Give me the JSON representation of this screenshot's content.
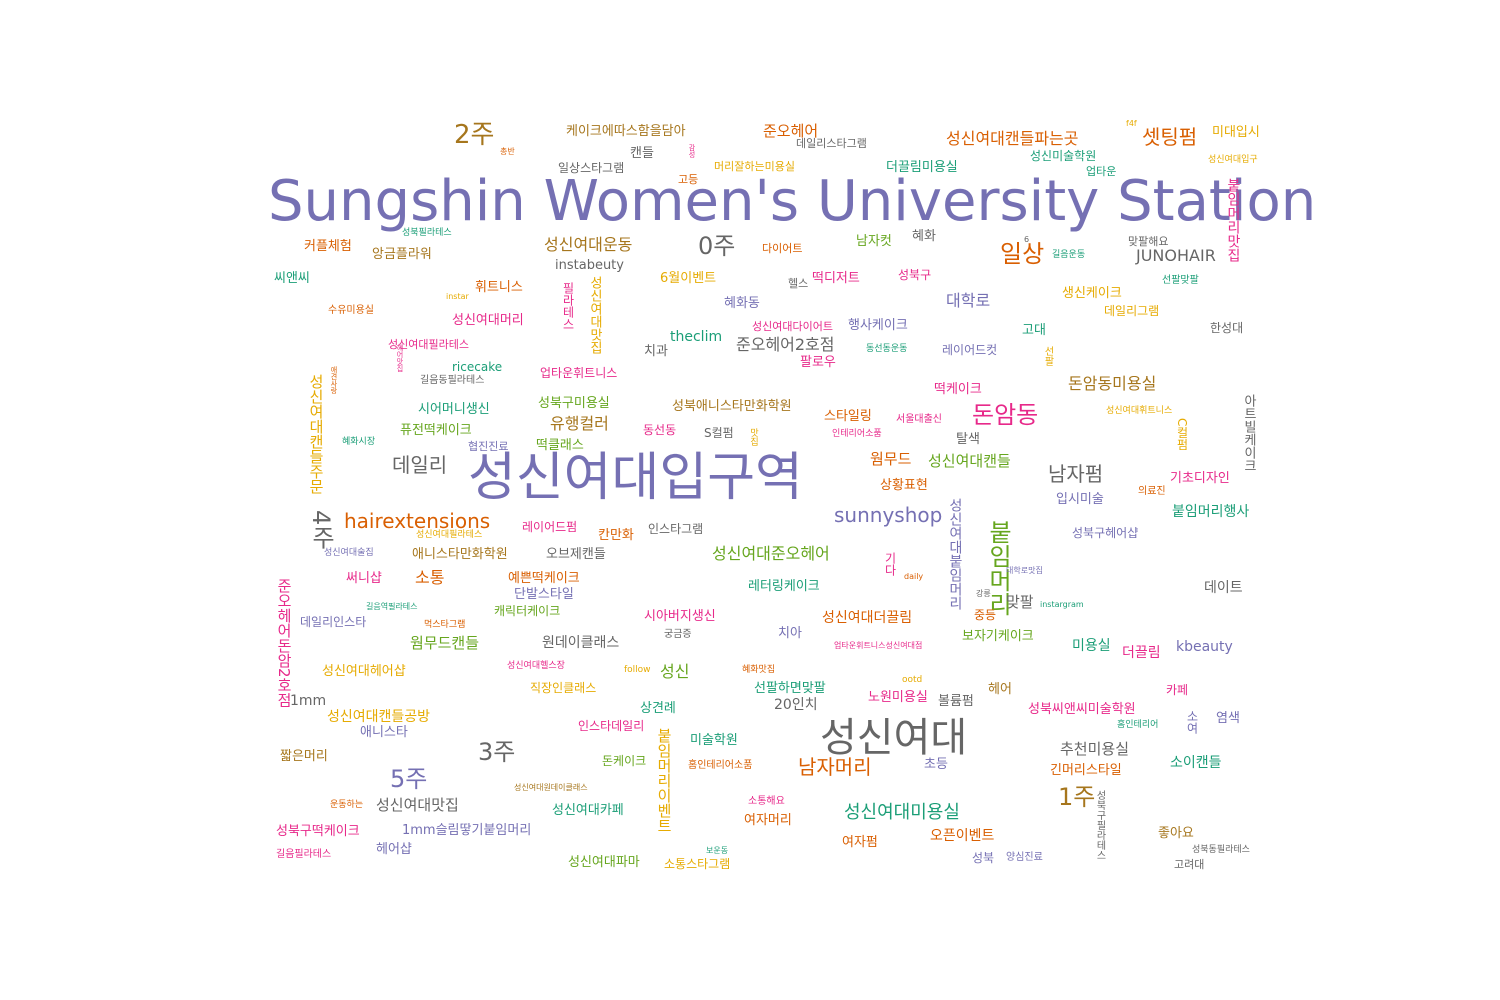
{
  "palette": {
    "purple": "#7570b3",
    "orange": "#d95f02",
    "green": "#1b9e77",
    "pink": "#e7298a",
    "lime": "#66a61e",
    "gold": "#e6ab02",
    "brown": "#a6761d",
    "gray": "#666666"
  },
  "words": [
    {
      "text": "Sungshin Women's University Station",
      "color": "purple"
    },
    {
      "text": "성신여대입구역",
      "color": "purple"
    },
    {
      "text": "성신여대",
      "color": "gray"
    },
    {
      "text": "2주",
      "color": "brown"
    },
    {
      "text": "0주",
      "color": "gray"
    },
    {
      "text": "3주",
      "color": "gray"
    },
    {
      "text": "5주",
      "color": "purple"
    },
    {
      "text": "1주",
      "color": "brown"
    },
    {
      "text": "4주",
      "color": "gray"
    },
    {
      "text": "일상",
      "color": "orange"
    },
    {
      "text": "돈암동",
      "color": "pink"
    },
    {
      "text": "데일리",
      "color": "gray"
    },
    {
      "text": "남자펌",
      "color": "gray"
    },
    {
      "text": "hairextensions",
      "color": "orange"
    },
    {
      "text": "sunnyshop",
      "color": "purple"
    },
    {
      "text": "붙임머리",
      "color": "lime"
    },
    {
      "text": "남자머리",
      "color": "orange"
    },
    {
      "text": "셋팅펌",
      "color": "orange"
    },
    {
      "text": "JUNOHAIR",
      "color": "gray"
    },
    {
      "text": "성신여대운동",
      "color": "brown"
    },
    {
      "text": "성신여대미용실",
      "color": "green"
    },
    {
      "text": "성신여대캔들파는곳",
      "color": "orange"
    },
    {
      "text": "케이크에따스함을담아",
      "color": "brown"
    },
    {
      "text": "준오헤어",
      "color": "orange"
    },
    {
      "text": "준오헤어2호점",
      "color": "gray"
    },
    {
      "text": "대학로",
      "color": "purple"
    },
    {
      "text": "돈암동미용실",
      "color": "brown"
    },
    {
      "text": "유행컬러",
      "color": "brown"
    },
    {
      "text": "웜무드",
      "color": "orange"
    },
    {
      "text": "성신여대캔들",
      "color": "lime"
    },
    {
      "text": "성신여대준오헤어",
      "color": "lime"
    },
    {
      "text": "소통",
      "color": "orange"
    },
    {
      "text": "붙임머리행사",
      "color": "green"
    },
    {
      "text": "웜무드캔들",
      "color": "lime"
    },
    {
      "text": "성신여대캔들공방",
      "color": "gold"
    },
    {
      "text": "성신여대맛집",
      "color": "gray"
    },
    {
      "text": "추천미용실",
      "color": "gray"
    },
    {
      "text": "kbeauty",
      "color": "purple"
    },
    {
      "text": "instabeuty",
      "color": "gray"
    },
    {
      "text": "더끌림미용실",
      "color": "green"
    },
    {
      "text": "성신미술학원",
      "color": "green"
    },
    {
      "text": "미대입시",
      "color": "gold"
    },
    {
      "text": "데일리스타그램",
      "color": "gray"
    },
    {
      "text": "일상스타그램",
      "color": "gray"
    },
    {
      "text": "머리잘하는미용실",
      "color": "gold"
    },
    {
      "text": "캔들",
      "color": "gray"
    },
    {
      "text": "고등",
      "color": "orange"
    },
    {
      "text": "업타운",
      "color": "green"
    },
    {
      "text": "커플체험",
      "color": "orange"
    },
    {
      "text": "앙금플라워",
      "color": "brown"
    },
    {
      "text": "성북필라테스",
      "color": "green"
    },
    {
      "text": "다이어트",
      "color": "orange"
    },
    {
      "text": "남자컷",
      "color": "lime"
    },
    {
      "text": "혜화",
      "color": "gray"
    },
    {
      "text": "맞팔해요",
      "color": "gray"
    },
    {
      "text": "길음운동",
      "color": "green"
    },
    {
      "text": "씨앤씨",
      "color": "green"
    },
    {
      "text": "휘트니스",
      "color": "orange"
    },
    {
      "text": "6월이벤트",
      "color": "gold"
    },
    {
      "text": "헬스",
      "color": "gray"
    },
    {
      "text": "떡디저트",
      "color": "pink"
    },
    {
      "text": "성북구",
      "color": "pink"
    },
    {
      "text": "생신케이크",
      "color": "gold"
    },
    {
      "text": "선팔맞팔",
      "color": "green"
    },
    {
      "text": "수유미용실",
      "color": "orange"
    },
    {
      "text": "instar",
      "color": "gold"
    },
    {
      "text": "성신여대머리",
      "color": "pink"
    },
    {
      "text": "혜화동",
      "color": "purple"
    },
    {
      "text": "데일리그램",
      "color": "gold"
    },
    {
      "text": "한성대",
      "color": "gray"
    },
    {
      "text": "theclim",
      "color": "green"
    },
    {
      "text": "성신여대다이어트",
      "color": "pink"
    },
    {
      "text": "행사케이크",
      "color": "purple"
    },
    {
      "text": "고대",
      "color": "green"
    },
    {
      "text": "성신여대필라테스",
      "color": "pink"
    },
    {
      "text": "치과",
      "color": "gray"
    },
    {
      "text": "동선동운동",
      "color": "green"
    },
    {
      "text": "레이어드컷",
      "color": "purple"
    },
    {
      "text": "ricecake",
      "color": "green"
    },
    {
      "text": "팔로우",
      "color": "pink"
    },
    {
      "text": "길음동필라테스",
      "color": "gray"
    },
    {
      "text": "업타운휘트니스",
      "color": "pink"
    },
    {
      "text": "떡케이크",
      "color": "pink"
    },
    {
      "text": "성신여대휘트니스",
      "color": "gold"
    },
    {
      "text": "시어머니생신",
      "color": "green"
    },
    {
      "text": "성북구미용실",
      "color": "lime"
    },
    {
      "text": "성북애니스타만화학원",
      "color": "brown"
    },
    {
      "text": "스타일링",
      "color": "orange"
    },
    {
      "text": "서울대출신",
      "color": "pink"
    },
    {
      "text": "퓨전떡케이크",
      "color": "lime"
    },
    {
      "text": "동선동",
      "color": "pink"
    },
    {
      "text": "S컬펌",
      "color": "gray"
    },
    {
      "text": "인테리어소품",
      "color": "pink"
    },
    {
      "text": "탈색",
      "color": "gray"
    },
    {
      "text": "협진진료",
      "color": "purple"
    },
    {
      "text": "떡클래스",
      "color": "lime"
    },
    {
      "text": "기초디자인",
      "color": "pink"
    },
    {
      "text": "상황표현",
      "color": "orange"
    },
    {
      "text": "혜화시장",
      "color": "green"
    },
    {
      "text": "입시미술",
      "color": "purple"
    },
    {
      "text": "의료진",
      "color": "orange"
    },
    {
      "text": "레이어드펌",
      "color": "pink"
    },
    {
      "text": "칸만화",
      "color": "orange"
    },
    {
      "text": "인스타그램",
      "color": "gray"
    },
    {
      "text": "성북구헤어샵",
      "color": "purple"
    },
    {
      "text": "성신여대필라테스",
      "color": "gold"
    },
    {
      "text": "성신여대술집",
      "color": "purple"
    },
    {
      "text": "애니스타만화학원",
      "color": "brown"
    },
    {
      "text": "오브제캔들",
      "color": "gray"
    },
    {
      "text": "써니샵",
      "color": "pink"
    },
    {
      "text": "예쁜떡케이크",
      "color": "orange"
    },
    {
      "text": "레터링케이크",
      "color": "green"
    },
    {
      "text": "daily",
      "color": "orange"
    },
    {
      "text": "대학로맛집",
      "color": "purple"
    },
    {
      "text": "단발스타일",
      "color": "purple"
    },
    {
      "text": "길음역필라테스",
      "color": "green"
    },
    {
      "text": "캐릭터케이크",
      "color": "lime"
    },
    {
      "text": "데일리인스타",
      "color": "purple"
    },
    {
      "text": "먹스타그램",
      "color": "orange"
    },
    {
      "text": "시아버지생신",
      "color": "pink"
    },
    {
      "text": "성신여대더끌림",
      "color": "orange"
    },
    {
      "text": "중등",
      "color": "orange"
    },
    {
      "text": "맞팔",
      "color": "gray"
    },
    {
      "text": "instargram",
      "color": "green"
    },
    {
      "text": "데이트",
      "color": "gray"
    },
    {
      "text": "원데이클래스",
      "color": "gray"
    },
    {
      "text": "궁금증",
      "color": "gray"
    },
    {
      "text": "치아",
      "color": "purple"
    },
    {
      "text": "보자기케이크",
      "color": "lime"
    },
    {
      "text": "미용실",
      "color": "green"
    },
    {
      "text": "더끌림",
      "color": "pink"
    },
    {
      "text": "성신여대헤어샵",
      "color": "gold"
    },
    {
      "text": "성신여대헬스장",
      "color": "pink"
    },
    {
      "text": "follow",
      "color": "gold"
    },
    {
      "text": "성신",
      "color": "lime"
    },
    {
      "text": "혜화맛집",
      "color": "orange"
    },
    {
      "text": "업타운휘트니스성신여대점",
      "color": "pink"
    },
    {
      "text": "1mm",
      "color": "gray"
    },
    {
      "text": "직장인클래스",
      "color": "gold"
    },
    {
      "text": "선팔하면맞팔",
      "color": "green"
    },
    {
      "text": "ootd",
      "color": "gold"
    },
    {
      "text": "헤어",
      "color": "brown"
    },
    {
      "text": "카페",
      "color": "pink"
    },
    {
      "text": "노원미용실",
      "color": "pink"
    },
    {
      "text": "볼륨펌",
      "color": "gray"
    },
    {
      "text": "상견례",
      "color": "green"
    },
    {
      "text": "20인치",
      "color": "gray"
    },
    {
      "text": "성북씨앤씨미술학원",
      "color": "pink"
    },
    {
      "text": "소여",
      "color": "purple"
    },
    {
      "text": "염색",
      "color": "purple"
    },
    {
      "text": "애니스타",
      "color": "purple"
    },
    {
      "text": "인스타데일리",
      "color": "pink"
    },
    {
      "text": "홈인테리어",
      "color": "green"
    },
    {
      "text": "미술학원",
      "color": "green"
    },
    {
      "text": "짧은머리",
      "color": "brown"
    },
    {
      "text": "돈케이크",
      "color": "lime"
    },
    {
      "text": "홈인테리어소품",
      "color": "orange"
    },
    {
      "text": "초등",
      "color": "purple"
    },
    {
      "text": "긴머리스타일",
      "color": "orange"
    },
    {
      "text": "소이캔들",
      "color": "green"
    },
    {
      "text": "성신여대원데이클래스",
      "color": "brown"
    },
    {
      "text": "운동하는",
      "color": "orange"
    },
    {
      "text": "성신여대카페",
      "color": "green"
    },
    {
      "text": "소통해요",
      "color": "pink"
    },
    {
      "text": "여자머리",
      "color": "orange"
    },
    {
      "text": "성북구떡케이크",
      "color": "pink"
    },
    {
      "text": "1mm슬림땋기붙임머리",
      "color": "purple"
    },
    {
      "text": "오픈이벤트",
      "color": "orange"
    },
    {
      "text": "여자펌",
      "color": "orange"
    },
    {
      "text": "좋아요",
      "color": "brown"
    },
    {
      "text": "헤어샵",
      "color": "purple"
    },
    {
      "text": "보운동",
      "color": "green"
    },
    {
      "text": "길음필라테스",
      "color": "pink"
    },
    {
      "text": "성신여대파마",
      "color": "lime"
    },
    {
      "text": "소통스타그램",
      "color": "gold"
    },
    {
      "text": "성북",
      "color": "purple"
    },
    {
      "text": "양심진료",
      "color": "purple"
    },
    {
      "text": "성북동필라테스",
      "color": "gray"
    },
    {
      "text": "고려대",
      "color": "gray"
    },
    {
      "text": "성신여대입구",
      "color": "gold"
    },
    {
      "text": "총반",
      "color": "orange"
    },
    {
      "text": "f4f",
      "color": "gold"
    },
    {
      "text": "6",
      "color": "gray"
    },
    {
      "text": "붙임머리맛집",
      "color": "pink"
    },
    {
      "text": "필라테스",
      "color": "pink"
    },
    {
      "text": "성신여대맛집",
      "color": "gold"
    },
    {
      "text": "성신여대캔들주문",
      "color": "gold"
    },
    {
      "text": "준오헤어돈암2호점",
      "color": "pink"
    },
    {
      "text": "애견사랑",
      "color": "orange"
    },
    {
      "text": "헤어맛집",
      "color": "pink"
    },
    {
      "text": "성신여대붙임머리",
      "color": "purple"
    },
    {
      "text": "기다",
      "color": "pink"
    },
    {
      "text": "선팔",
      "color": "gold"
    },
    {
      "text": "C컬펌",
      "color": "gold"
    },
    {
      "text": "아트빌케이크",
      "color": "gray"
    },
    {
      "text": "붙임머리이벤트",
      "color": "gold"
    },
    {
      "text": "성북구필라테스",
      "color": "gray"
    },
    {
      "text": "감성",
      "color": "pink"
    },
    {
      "text": "맛집",
      "color": "gold"
    },
    {
      "text": "강릉",
      "color": "gray"
    }
  ]
}
